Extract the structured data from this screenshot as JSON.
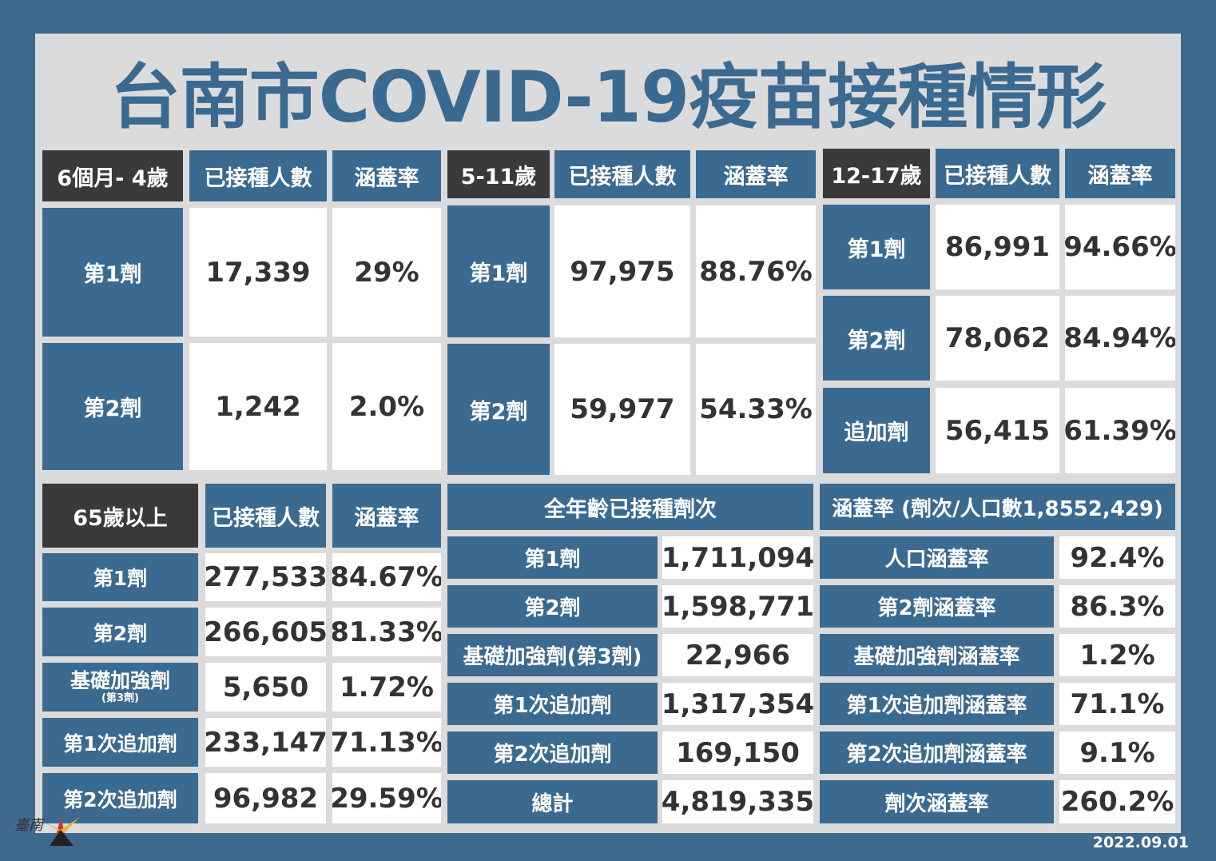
{
  "title": "台南市COVID-19疫苗接種情形",
  "date": "2022.09.01",
  "logo_text": "臺南",
  "colors": {
    "background": "#3e6a8e",
    "header_blue": "#3b6a91",
    "dark_header": "#3a3a3a",
    "panel": "#dcdbdc"
  },
  "col_headers": {
    "count": "已接種人數",
    "rate": "涵蓋率"
  },
  "group_6m_4y": {
    "age": "6個月- 4歲",
    "rows": [
      {
        "label": "第1劑",
        "count": "17,339",
        "rate": "29%"
      },
      {
        "label": "第2劑",
        "count": "1,242",
        "rate": "2.0%"
      }
    ]
  },
  "group_5_11": {
    "age": "5-11歲",
    "rows": [
      {
        "label": "第1劑",
        "count": "97,975",
        "rate": "88.76%"
      },
      {
        "label": "第2劑",
        "count": "59,977",
        "rate": "54.33%"
      }
    ]
  },
  "group_12_17": {
    "age": "12-17歲",
    "rows": [
      {
        "label": "第1劑",
        "count": "86,991",
        "rate": "94.66%"
      },
      {
        "label": "第2劑",
        "count": "78,062",
        "rate": "84.94%"
      },
      {
        "label": "追加劑",
        "count": "56,415",
        "rate": "61.39%"
      }
    ]
  },
  "group_65": {
    "age": "65歲以上",
    "rows": [
      {
        "label": "第1劑",
        "sub": "",
        "count": "277,533",
        "rate": "84.67%"
      },
      {
        "label": "第2劑",
        "sub": "",
        "count": "266,605",
        "rate": "81.33%"
      },
      {
        "label": "基礎加強劑",
        "sub": "(第3劑)",
        "count": "5,650",
        "rate": "1.72%"
      },
      {
        "label": "第1次追加劑",
        "sub": "",
        "count": "233,147",
        "rate": "71.13%"
      },
      {
        "label": "第2次追加劑",
        "sub": "",
        "count": "96,982",
        "rate": "29.59%"
      }
    ]
  },
  "all_ages": {
    "header": "全年齡已接種劑次",
    "rows": [
      {
        "label": "第1劑",
        "value": "1,711,094"
      },
      {
        "label": "第2劑",
        "value": "1,598,771"
      },
      {
        "label": "基礎加強劑(第3劑)",
        "value": "22,966"
      },
      {
        "label": "第1次追加劑",
        "value": "1,317,354"
      },
      {
        "label": "第2次追加劑",
        "value": "169,150"
      },
      {
        "label": "總計",
        "value": "4,819,335"
      }
    ]
  },
  "coverage": {
    "header": "涵蓋率 (劑次/人口數1,8552,429)",
    "rows": [
      {
        "label": "人口涵蓋率",
        "value": "92.4%"
      },
      {
        "label": "第2劑涵蓋率",
        "value": "86.3%"
      },
      {
        "label": "基礎加強劑涵蓋率",
        "value": "1.2%"
      },
      {
        "label": "第1次追加劑涵蓋率",
        "value": "71.1%"
      },
      {
        "label": "第2次追加劑涵蓋率",
        "value": "9.1%"
      },
      {
        "label": "劑次涵蓋率",
        "value": "260.2%"
      }
    ]
  }
}
